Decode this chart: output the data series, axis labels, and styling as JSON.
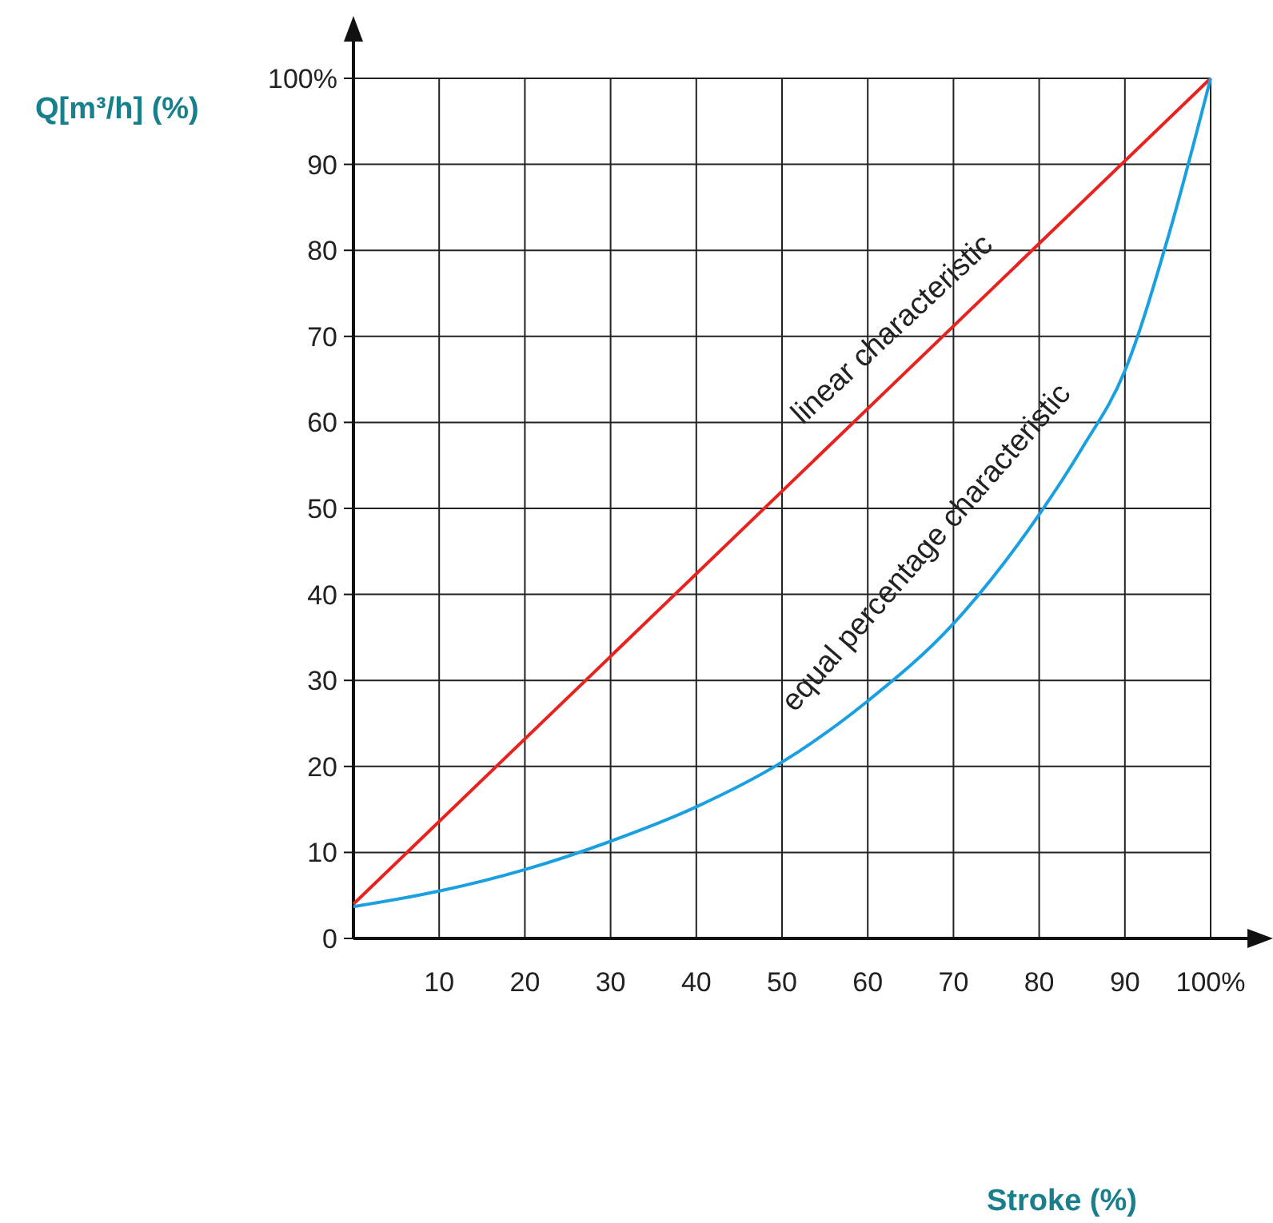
{
  "chart_data": {
    "type": "line",
    "ylabel": "Q[m³/h] (%)",
    "x": [
      0,
      10,
      20,
      30,
      40,
      50,
      60,
      70,
      80,
      85,
      90,
      95,
      100
    ],
    "series": [
      {
        "color": "#e8231f",
        "x": [
          0,
          100
        ],
        "values": [
          4,
          100
        ]
      },
      {
        "color": "#1a9fe0",
        "values": [
          3.7,
          5.5,
          8,
          11.3,
          15.3,
          20.5,
          27.6,
          36.6,
          49.3,
          57,
          66,
          81.4,
          100
        ]
      }
    ],
    "annotations": [
      "linear characteristic",
      "equal percentage characteristic",
      "Stroke (%)"
    ],
    "xlim": [
      0,
      100
    ],
    "ylim": [
      0,
      100
    ],
    "xticks": [
      10,
      20,
      30,
      40,
      50,
      60,
      70,
      80,
      90,
      {
        "value": 100,
        "label": "100%"
      }
    ],
    "yticks": [
      0,
      10,
      20,
      30,
      40,
      50,
      60,
      70,
      80,
      90,
      {
        "value": 100,
        "label": "100%"
      }
    ],
    "grid": true,
    "marker": "none",
    "line_style": "solid"
  }
}
